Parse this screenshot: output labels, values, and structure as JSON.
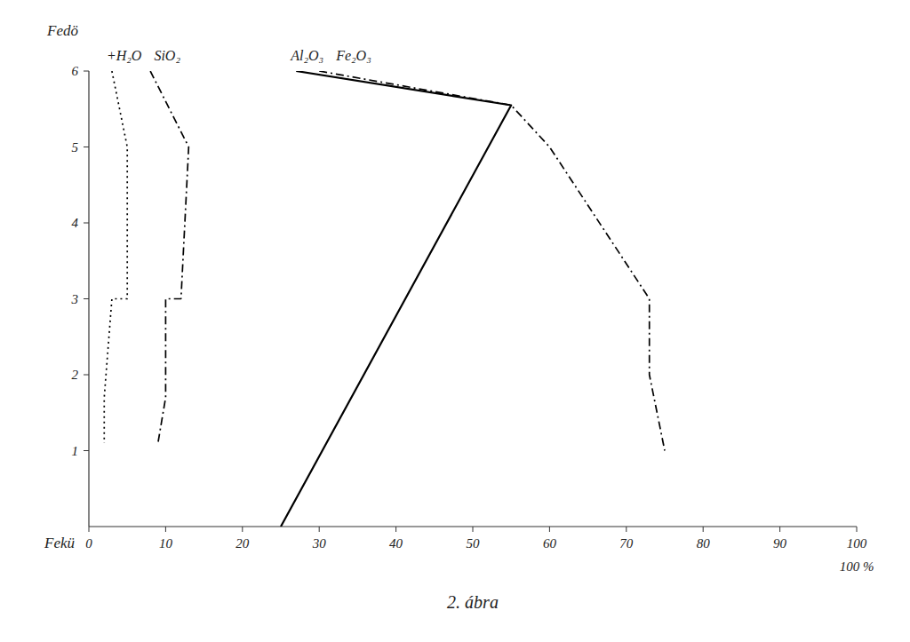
{
  "chart_data": {
    "type": "line",
    "title": "2. ábra",
    "annotations": [
      "Fedö",
      "Fekü",
      "100 %"
    ],
    "xlim": [
      0,
      100
    ],
    "ylim": [
      0,
      6
    ],
    "xticks": [
      0,
      10,
      20,
      30,
      40,
      50,
      60,
      70,
      80,
      90,
      100
    ],
    "yticks": [
      1,
      2,
      3,
      4,
      5,
      6
    ],
    "grid": false,
    "series": [
      {
        "name": "+H₂O",
        "color": "#000000",
        "line_style": "dotted",
        "x": [
          3,
          5,
          5,
          3,
          2,
          2
        ],
        "values": [
          6,
          5,
          3,
          3,
          1.7,
          1.1
        ]
      },
      {
        "name": "SiO₂",
        "color": "#000000",
        "line_style": "dashdot",
        "x": [
          8,
          13,
          12,
          10,
          10,
          9
        ],
        "values": [
          6,
          5,
          3,
          3,
          1.7,
          1.1
        ]
      },
      {
        "name": "Al₂O₃",
        "color": "#000000",
        "line_style": "solid",
        "x": [
          27,
          55,
          25
        ],
        "values": [
          6,
          5.55,
          0
        ]
      },
      {
        "name": "Fe₂O₃",
        "color": "#000000",
        "line_style": "dashdot",
        "x": [
          30,
          55,
          60,
          73,
          73,
          75
        ],
        "values": [
          6,
          5.55,
          5,
          3,
          2,
          1
        ]
      }
    ]
  }
}
